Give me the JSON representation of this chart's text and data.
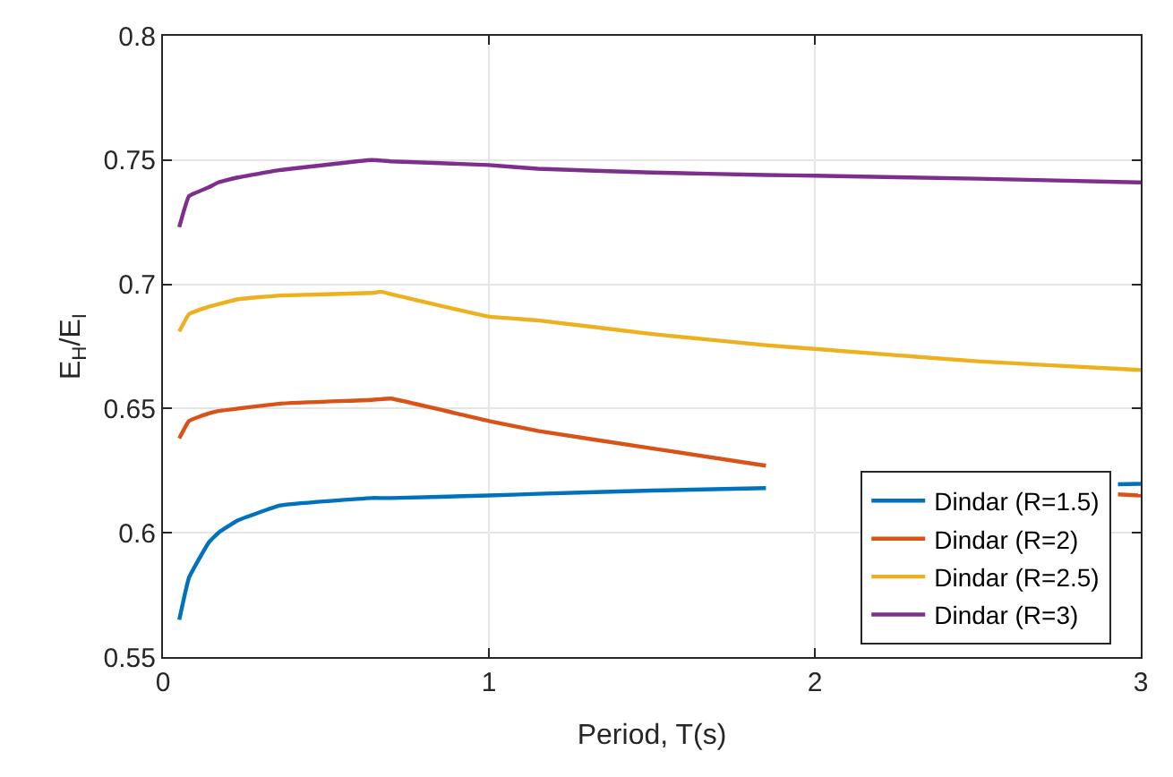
{
  "chart_data": {
    "type": "line",
    "xlabel": "Period, T(s)",
    "ylabel": "E$_{H}$/E$_{I}$",
    "xlim": [
      0,
      3
    ],
    "xticks": [
      0,
      1,
      2,
      3
    ],
    "ylim": [
      0.55,
      0.8
    ],
    "yticks": [
      0.55,
      0.6,
      0.65,
      0.7,
      0.75,
      0.8
    ],
    "grid": true,
    "legend": "bottom right",
    "line_style": "solid",
    "marker": "none",
    "x": [
      0.05,
      0.08,
      0.14,
      0.17,
      0.23,
      0.36,
      0.64,
      0.67,
      0.7,
      1.0,
      1.15,
      1.5,
      1.85,
      2.0,
      2.5,
      2.93,
      3.0
    ],
    "series": [
      {
        "name": "Dindar (R=1.5)",
        "color": "#0072bd",
        "values": [
          0.565,
          0.582,
          0.596,
          0.6,
          0.605,
          0.611,
          0.614,
          0.614,
          0.614,
          0.615,
          0.6157,
          0.617,
          0.618,
          null,
          null,
          0.6195,
          0.6197
        ]
      },
      {
        "name": "Dindar (R=2)",
        "color": "#d95319",
        "values": [
          0.638,
          0.645,
          0.648,
          0.649,
          0.65,
          0.652,
          0.6535,
          0.6538,
          0.654,
          0.645,
          0.641,
          0.634,
          0.627,
          null,
          null,
          0.6155,
          0.615
        ]
      },
      {
        "name": "Dindar (R=2.5)",
        "color": "#edb120",
        "values": [
          0.681,
          0.688,
          0.691,
          0.692,
          0.694,
          0.6955,
          0.6965,
          0.697,
          0.696,
          0.687,
          0.6855,
          0.68,
          0.6755,
          0.674,
          0.669,
          0.666,
          0.6655
        ]
      },
      {
        "name": "Dindar (R=3)",
        "color": "#7e2f8e",
        "values": [
          0.723,
          0.7355,
          0.739,
          0.741,
          0.743,
          0.746,
          0.75,
          0.7498,
          0.7495,
          0.748,
          0.7465,
          0.745,
          0.744,
          0.7437,
          0.7425,
          0.7412,
          0.741
        ]
      }
    ]
  }
}
